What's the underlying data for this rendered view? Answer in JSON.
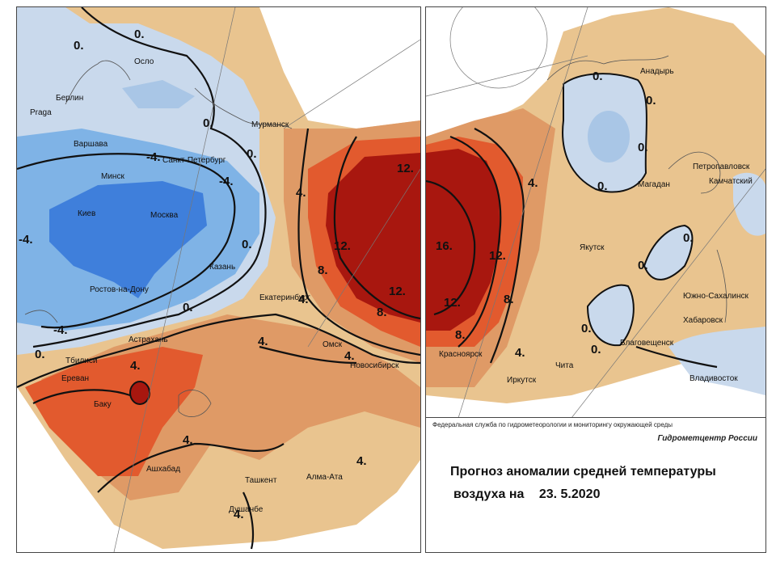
{
  "map_left": {
    "cities": [
      "Осло",
      "Берлин",
      "Praga",
      "Варшава",
      "Минск",
      "Киев",
      "Москва",
      "Санкт-Петербург",
      "Мурманск",
      "Казань",
      "Ростов-на-Дону",
      "Астрахань",
      "Тбилиси",
      "Ереван",
      "Баку",
      "Екатеринбург",
      "Омск",
      "Новосибирск",
      "Ашхабад",
      "Ташкент",
      "Алма-Ата",
      "Душанбе"
    ],
    "isolines": [
      "0.",
      "0.",
      "0.",
      "0.",
      "0.",
      "0.",
      "0.",
      "-4.",
      "-4.",
      "-4.",
      "-4.",
      "4.",
      "4.",
      "4.",
      "4.",
      "4.",
      "4.",
      "4.",
      "4.",
      "8.",
      "8.",
      "12.",
      "12.",
      "12."
    ]
  },
  "map_right": {
    "cities": [
      "Анадырь",
      "Магадан",
      "Петропавловск",
      "Камчатский",
      "Якутск",
      "Южно-Сахалинск",
      "Хабаровск",
      "Благовещенск",
      "Владивосток",
      "Чита",
      "Иркутск",
      "Красноярск"
    ],
    "isolines": [
      "0.",
      "0.",
      "0.",
      "0.",
      "0.",
      "0.",
      "0.",
      "0.",
      "4.",
      "4.",
      "8.",
      "8.",
      "12.",
      "12.",
      "16."
    ]
  },
  "footer": {
    "agency": "Федеральная служба по гидрометеорологии и мониторингу окружающей среды",
    "center": "Гидрометцентр России",
    "title_line1": "Прогноз аномалии средней температуры",
    "title_line2_prefix": "воздуха на",
    "date": "23. 5.2020"
  },
  "colors": {
    "cold_strong": "#3f7fdb",
    "cold_mid": "#7fb3e6",
    "cold_light": "#c9d9ec",
    "neutral_warm": "#e9c48f",
    "warm_mid": "#df9a66",
    "warm_strong": "#e25a2e",
    "hot": "#a8170f",
    "land_border": "#555555"
  }
}
